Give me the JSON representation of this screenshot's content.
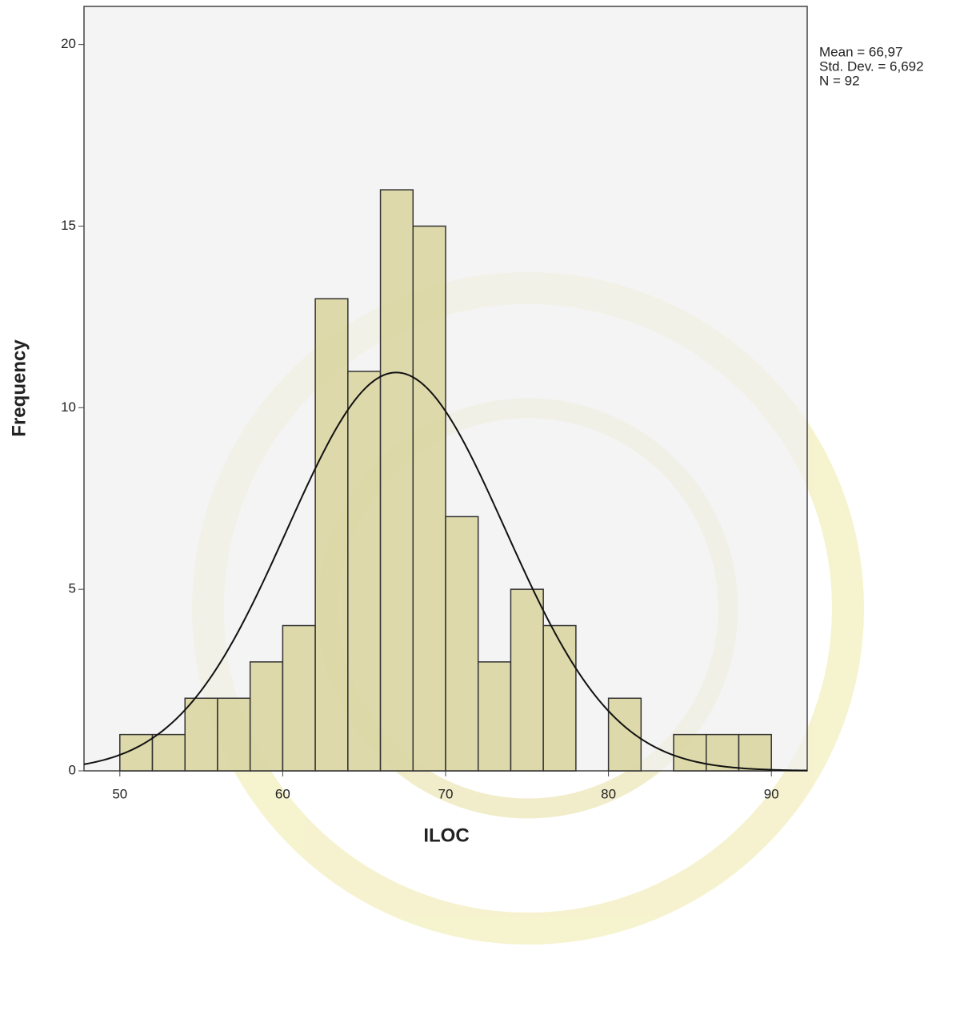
{
  "chart_data": {
    "type": "histogram",
    "x_label": "ILOC",
    "y_label": "Frequency",
    "bins": [
      50,
      52,
      54,
      56,
      58,
      60,
      62,
      64,
      66,
      68,
      70,
      72,
      74,
      76,
      78,
      80,
      82,
      84,
      86,
      88,
      90
    ],
    "values": [
      1,
      1,
      2,
      2,
      3,
      4,
      13,
      11,
      16,
      15,
      7,
      3,
      5,
      4,
      0,
      2,
      0,
      1,
      1,
      1
    ],
    "color": "#d8d49c",
    "xlim": [
      47.8,
      92.2
    ],
    "xticks": [
      50,
      60,
      70,
      80,
      90
    ],
    "ylim": [
      0,
      21.05
    ],
    "yticks": [
      0,
      5,
      10,
      15,
      20
    ],
    "stats": [
      {
        "label": "Mean = 66,97",
        "value": 66.97
      },
      {
        "label": "Std. Dev. = 6,692",
        "value": 6.692
      },
      {
        "label": "N = 92",
        "value": 92
      }
    ]
  }
}
